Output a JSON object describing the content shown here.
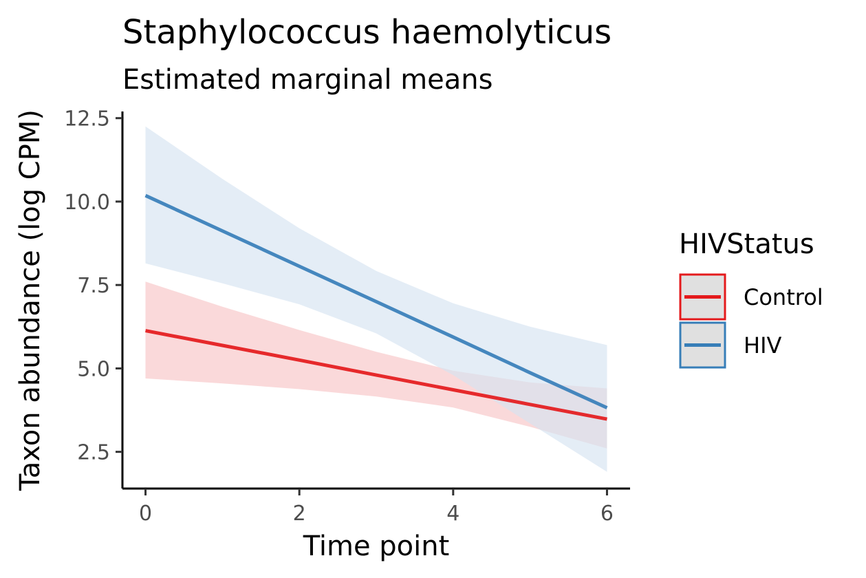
{
  "chart_data": {
    "type": "line",
    "title": "Staphylococcus haemolyticus",
    "subtitle": "Estimated marginal means",
    "xlabel": "Time point",
    "ylabel": "Taxon abundance (log CPM)",
    "xlim": [
      -0.3,
      6.3
    ],
    "ylim": [
      1.4,
      12.7
    ],
    "xticks": [
      0,
      2,
      4,
      6
    ],
    "xtick_labels": [
      "0",
      "2",
      "4",
      "6"
    ],
    "yticks": [
      2.5,
      5.0,
      7.5,
      10.0,
      12.5
    ],
    "ytick_labels": [
      "2.5",
      "5.0",
      "7.5",
      "10.0",
      "12.5"
    ],
    "grid": false,
    "legend": {
      "title": "HIVStatus",
      "position": "right"
    },
    "series": [
      {
        "name": "Control",
        "color": "#e41a1c",
        "ribbon_color": "#f8c5c6",
        "x": [
          0,
          1,
          2,
          3,
          4,
          5,
          6
        ],
        "y": [
          6.13,
          5.69,
          5.25,
          4.8,
          4.36,
          3.92,
          3.48
        ],
        "lower": [
          4.7,
          4.55,
          4.38,
          4.16,
          3.83,
          3.25,
          2.6
        ],
        "upper": [
          7.6,
          6.85,
          6.15,
          5.5,
          4.93,
          4.58,
          4.4
        ]
      },
      {
        "name": "HIV",
        "color": "#377eb8",
        "ribbon_color": "#d5e3f1",
        "x": [
          0,
          1,
          2,
          3,
          4,
          5,
          6
        ],
        "y": [
          10.18,
          9.12,
          8.06,
          7.0,
          5.94,
          4.87,
          3.82
        ],
        "lower": [
          8.15,
          7.55,
          6.92,
          6.05,
          4.8,
          3.35,
          1.9
        ],
        "upper": [
          12.25,
          10.68,
          9.2,
          7.92,
          6.95,
          6.25,
          5.7
        ]
      }
    ]
  }
}
